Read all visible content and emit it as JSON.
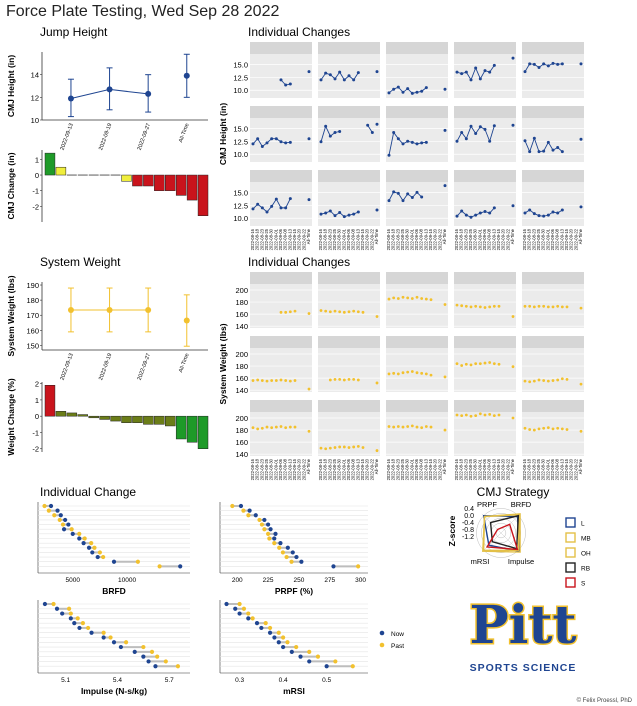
{
  "page_title": "Force Plate Testing, Wed Sep 28 2022",
  "credit": "© Felix Proessl, PhD",
  "logo": {
    "word": "Pitt",
    "subtitle": "SPORTS SCIENCE"
  },
  "colors": {
    "navy": "#1f4591",
    "gold": "#f2c12e",
    "green": "#1e9a28",
    "red": "#c9141c",
    "olive": "#6b7d18",
    "yellow": "#f0ee3c",
    "panel": "#ebebeb",
    "strip": "#d6d6d6"
  },
  "chart_data": [
    {
      "id": "jump-height",
      "type": "errorbar",
      "title": "Jump Height",
      "ylabel": "CMJ Height (in)",
      "categories": [
        "2022-09-13",
        "2022-09-19",
        "2022-09-27",
        "All-Time"
      ],
      "values": [
        11.9,
        12.7,
        12.3,
        13.9
      ],
      "lower": [
        10.3,
        10.9,
        10.7,
        12.0
      ],
      "upper": [
        13.6,
        14.6,
        14.0,
        15.8
      ],
      "ylim": [
        10,
        16
      ],
      "yticks": [
        10,
        12,
        14
      ]
    },
    {
      "id": "cmj-change",
      "type": "bar",
      "ylabel": "CMJ Change (in)",
      "values": [
        1.4,
        0.5,
        0.0,
        0.0,
        0.0,
        0.0,
        0.0,
        -0.4,
        -0.7,
        -0.7,
        -1.0,
        -1.0,
        -1.3,
        -1.6,
        -2.6
      ],
      "ylim": [
        -3,
        1.6
      ],
      "yticks": [
        1,
        0,
        -1,
        -2
      ]
    },
    {
      "id": "system-weight",
      "type": "errorbar",
      "title": "System Weight",
      "ylabel": "System Weight (lbs)",
      "categories": [
        "2022-09-13",
        "2022-09-19",
        "2022-09-27",
        "All-Time"
      ],
      "values": [
        173.5,
        173.5,
        173.5,
        166.5
      ],
      "lower": [
        159.0,
        159.0,
        159.0,
        149.5
      ],
      "upper": [
        188.0,
        188.0,
        188.0,
        183.5
      ],
      "ylim": [
        147,
        192
      ],
      "yticks": [
        150,
        160,
        170,
        180,
        190
      ]
    },
    {
      "id": "weight-change",
      "type": "bar",
      "ylabel": "Weight Change (%)",
      "values": [
        1.9,
        0.3,
        0.2,
        0.1,
        -0.1,
        -0.2,
        -0.3,
        -0.4,
        -0.4,
        -0.5,
        -0.5,
        -0.6,
        -1.4,
        -1.6,
        -2.0
      ],
      "ylim": [
        -2.2,
        2.1
      ],
      "yticks": [
        2,
        1,
        0,
        -1,
        -2
      ]
    },
    {
      "id": "height-facets",
      "type": "line-facets",
      "title": "Individual Changes",
      "ylabel": "CMJ Height (in)",
      "yticks": [
        10.0,
        12.5,
        15.0
      ],
      "ylim": [
        8.5,
        17.0
      ],
      "x_labels": [
        "2022-08-16",
        "2022-08-18",
        "2022-08-23",
        "2022-08-25",
        "2022-08-30",
        "2022-09-01",
        "2022-09-06",
        "2022-09-08",
        "2022-09-13",
        "2022-09-15",
        "2022-09-20",
        "2022-09-22",
        "All-Time"
      ],
      "panels": [
        [
          null,
          null,
          null,
          null,
          null,
          null,
          12.0,
          11.0,
          11.2,
          null,
          null,
          null,
          13.6
        ],
        [
          12.0,
          13.3,
          13.0,
          12.2,
          13.5,
          12.0,
          12.8,
          12.0,
          13.4,
          null,
          null,
          null,
          13.6
        ],
        [
          9.5,
          10.2,
          10.6,
          9.6,
          10.3,
          9.4,
          9.6,
          9.8,
          10.5,
          null,
          null,
          null,
          10.2
        ],
        [
          13.5,
          13.2,
          13.5,
          12.0,
          14.3,
          12.2,
          13.8,
          13.5,
          14.8,
          null,
          null,
          null,
          16.2
        ],
        [
          13.6,
          15.1,
          15.0,
          14.4,
          15.1,
          14.7,
          15.2,
          15.0,
          15.1,
          null,
          null,
          null,
          15.1
        ],
        [
          12.0,
          13.0,
          11.5,
          12.2,
          13.0,
          13.0,
          12.4,
          12.2,
          12.3,
          null,
          null,
          null,
          13.0
        ],
        [
          12.4,
          15.4,
          13.5,
          14.2,
          14.4,
          null,
          null,
          null,
          null,
          null,
          15.6,
          14.2,
          15.8
        ],
        [
          9.8,
          14.2,
          13.0,
          12.0,
          12.5,
          12.3,
          12.0,
          12.2,
          12.3,
          null,
          null,
          null,
          14.6
        ],
        [
          12.5,
          14.2,
          13.0,
          15.4,
          14.0,
          15.3,
          14.8,
          12.5,
          15.5,
          null,
          null,
          null,
          15.6
        ],
        [
          12.6,
          10.5,
          13.1,
          10.5,
          10.6,
          12.3,
          10.8,
          11.3,
          10.5,
          null,
          null,
          null,
          12.9
        ],
        [
          11.8,
          12.7,
          12.0,
          11.2,
          12.3,
          13.7,
          12.0,
          12.0,
          13.8,
          null,
          null,
          null,
          13.6
        ],
        [
          10.8,
          11.0,
          11.4,
          10.5,
          11.1,
          10.3,
          10.6,
          10.8,
          11.2,
          null,
          null,
          null,
          11.6
        ],
        [
          13.4,
          15.1,
          14.8,
          13.4,
          14.7,
          14.0,
          15.0,
          14.1,
          null,
          null,
          null,
          null,
          16.3
        ],
        [
          10.4,
          11.4,
          10.6,
          10.2,
          10.6,
          11.0,
          11.3,
          11.0,
          12.0,
          null,
          null,
          null,
          12.4
        ],
        [
          11.0,
          11.6,
          10.9,
          10.5,
          10.4,
          10.6,
          11.2,
          11.0,
          11.6,
          null,
          null,
          null,
          12.2
        ]
      ]
    },
    {
      "id": "weight-facets",
      "type": "point-facets",
      "title": "Individual Changes",
      "ylabel": "System Weight (lbs)",
      "yticks": [
        140,
        160,
        180,
        200
      ],
      "ylim": [
        137,
        210
      ],
      "x_labels": [
        "2022-08-16",
        "2022-08-18",
        "2022-08-23",
        "2022-08-25",
        "2022-08-30",
        "2022-09-01",
        "2022-09-06",
        "2022-09-08",
        "2022-09-13",
        "2022-09-15",
        "2022-09-20",
        "2022-09-22",
        "All-Time"
      ],
      "panels": [
        [
          null,
          null,
          null,
          null,
          null,
          null,
          163,
          163,
          164,
          165,
          null,
          null,
          161
        ],
        [
          166,
          165,
          164,
          165,
          164,
          163,
          164,
          165,
          164,
          163,
          null,
          null,
          156
        ],
        [
          185,
          187,
          186,
          188,
          187,
          186,
          188,
          186,
          185,
          184,
          null,
          null,
          176
        ],
        [
          175,
          174,
          173,
          172,
          173,
          172,
          171,
          172,
          173,
          173,
          null,
          null,
          156
        ],
        [
          173,
          173,
          172,
          173,
          173,
          172,
          172,
          173,
          172,
          172,
          null,
          null,
          170
        ],
        [
          156,
          157,
          156,
          155,
          156,
          156,
          157,
          156,
          155,
          156,
          null,
          null,
          142
        ],
        [
          null,
          null,
          157,
          158,
          158,
          157,
          158,
          158,
          157,
          null,
          null,
          null,
          152
        ],
        [
          167,
          168,
          167,
          169,
          170,
          171,
          169,
          168,
          167,
          165,
          null,
          null,
          162
        ],
        [
          184,
          181,
          183,
          182,
          184,
          184,
          185,
          186,
          184,
          183,
          null,
          null,
          179
        ],
        [
          155,
          154,
          155,
          157,
          156,
          155,
          156,
          157,
          159,
          158,
          null,
          null,
          150
        ],
        [
          184,
          182,
          183,
          185,
          184,
          185,
          186,
          184,
          185,
          185,
          null,
          null,
          178
        ],
        [
          150,
          149,
          150,
          151,
          152,
          152,
          151,
          152,
          153,
          151,
          null,
          null,
          146
        ],
        [
          186,
          185,
          186,
          185,
          186,
          187,
          185,
          184,
          186,
          185,
          null,
          null,
          180
        ],
        [
          205,
          204,
          205,
          203,
          204,
          207,
          205,
          206,
          204,
          205,
          null,
          null,
          200
        ],
        [
          183,
          181,
          180,
          182,
          183,
          184,
          182,
          183,
          182,
          181,
          null,
          null,
          178
        ]
      ]
    },
    {
      "id": "brfd-dumbbell",
      "type": "dumbbell",
      "title": "Individual Change",
      "xlabel": "BRFD",
      "xticks": [
        5000,
        10000
      ],
      "xlim": [
        1800,
        15800
      ],
      "now": [
        3000,
        3600,
        3900,
        4300,
        4600,
        4200,
        5000,
        5600,
        6000,
        6500,
        6800,
        7300,
        8800,
        14900
      ],
      "past": [
        2400,
        2800,
        3300,
        3800,
        4100,
        4900,
        5600,
        6100,
        6700,
        7000,
        7500,
        7800,
        11000,
        13000
      ]
    },
    {
      "id": "prpf-dumbbell",
      "type": "dumbbell",
      "xlabel": "PRPF (%)",
      "xticks": [
        200,
        225,
        250,
        275,
        300
      ],
      "xlim": [
        186,
        306
      ],
      "now": [
        203,
        210,
        215,
        222,
        225,
        227,
        231,
        230,
        235,
        241,
        245,
        248,
        252,
        278
      ],
      "past": [
        196,
        205,
        209,
        218,
        220,
        222,
        225,
        226,
        230,
        234,
        237,
        240,
        244,
        298
      ]
    },
    {
      "id": "impulse-dumbbell",
      "type": "dumbbell",
      "xlabel": "Impulse (N-s/kg)",
      "xticks": [
        5.1,
        5.4,
        5.7
      ],
      "xlim": [
        4.94,
        5.82
      ],
      "now": [
        4.98,
        5.05,
        5.08,
        5.13,
        5.15,
        5.18,
        5.25,
        5.32,
        5.38,
        5.42,
        5.5,
        5.55,
        5.58,
        5.62
      ],
      "past": [
        5.03,
        5.12,
        5.13,
        5.17,
        5.2,
        5.23,
        5.32,
        5.36,
        5.45,
        5.55,
        5.6,
        5.63,
        5.68,
        5.75
      ]
    },
    {
      "id": "mrsi-dumbbell",
      "type": "dumbbell",
      "xlabel": "mRSI",
      "xticks": [
        0.3,
        0.4,
        0.5
      ],
      "xlim": [
        0.255,
        0.595
      ],
      "now": [
        0.27,
        0.29,
        0.3,
        0.32,
        0.34,
        0.35,
        0.37,
        0.38,
        0.39,
        0.4,
        0.42,
        0.44,
        0.46,
        0.5
      ],
      "past": [
        0.3,
        0.31,
        0.32,
        0.33,
        0.36,
        0.37,
        0.39,
        0.4,
        0.41,
        0.43,
        0.46,
        0.48,
        0.52,
        0.56
      ]
    },
    {
      "id": "cmj-strategy",
      "type": "radar",
      "title": "CMJ Strategy",
      "ylabel": "Z-score",
      "axes": [
        "PRPF",
        "BRFD",
        "Impulse",
        "mRSI"
      ],
      "zticks": [
        "0.4",
        "0.0",
        "-0.4",
        "-0.8",
        "-1.2"
      ],
      "zlim": [
        -1.6,
        0.6
      ],
      "series": [
        {
          "name": "L",
          "color": "#1f4591",
          "values": [
            0.4,
            0.3,
            0.5,
            -0.2
          ]
        },
        {
          "name": "MB",
          "color": "#e3c048",
          "values": [
            0.3,
            0.6,
            0.6,
            0.5
          ]
        },
        {
          "name": "OH",
          "color": "#e3c048",
          "values": [
            0.3,
            0.5,
            0.4,
            0.4
          ]
        },
        {
          "name": "RB",
          "color": "#222222",
          "values": [
            -0.4,
            0.4,
            0.2,
            -0.6
          ]
        },
        {
          "name": "S",
          "color": "#c9141c",
          "values": [
            -1.2,
            -0.6,
            0.3,
            0.0
          ]
        }
      ]
    }
  ],
  "legend": {
    "now": "Now",
    "past": "Past"
  }
}
